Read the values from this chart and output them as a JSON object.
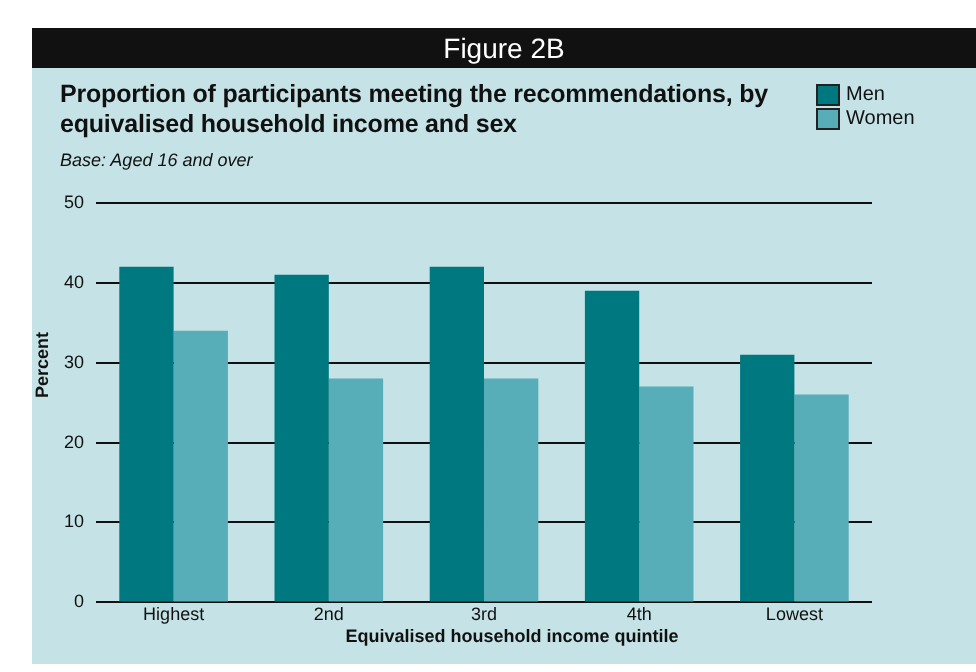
{
  "chart_data": {
    "type": "bar",
    "title": "Proportion  of participants meeting the recommendations, by equivalised household income and sex",
    "subtitle": "Base: Aged 16 and over",
    "annotations": [
      "Figure 2B"
    ],
    "xlabel": "Equivalised household income quintile",
    "ylabel": "Percent",
    "categories": [
      "Highest",
      "2nd",
      "3rd",
      "4th",
      "Lowest"
    ],
    "series": [
      {
        "name": "Men",
        "color": "#007880",
        "values": [
          42,
          41,
          42,
          39,
          31
        ]
      },
      {
        "name": "Women",
        "color": "#58aeb8",
        "values": [
          34,
          28,
          28,
          27,
          26
        ]
      }
    ],
    "ylim": [
      0,
      50
    ],
    "yticks": [
      0,
      10,
      20,
      30,
      40,
      50
    ],
    "grid": "y",
    "legend": "top right"
  }
}
